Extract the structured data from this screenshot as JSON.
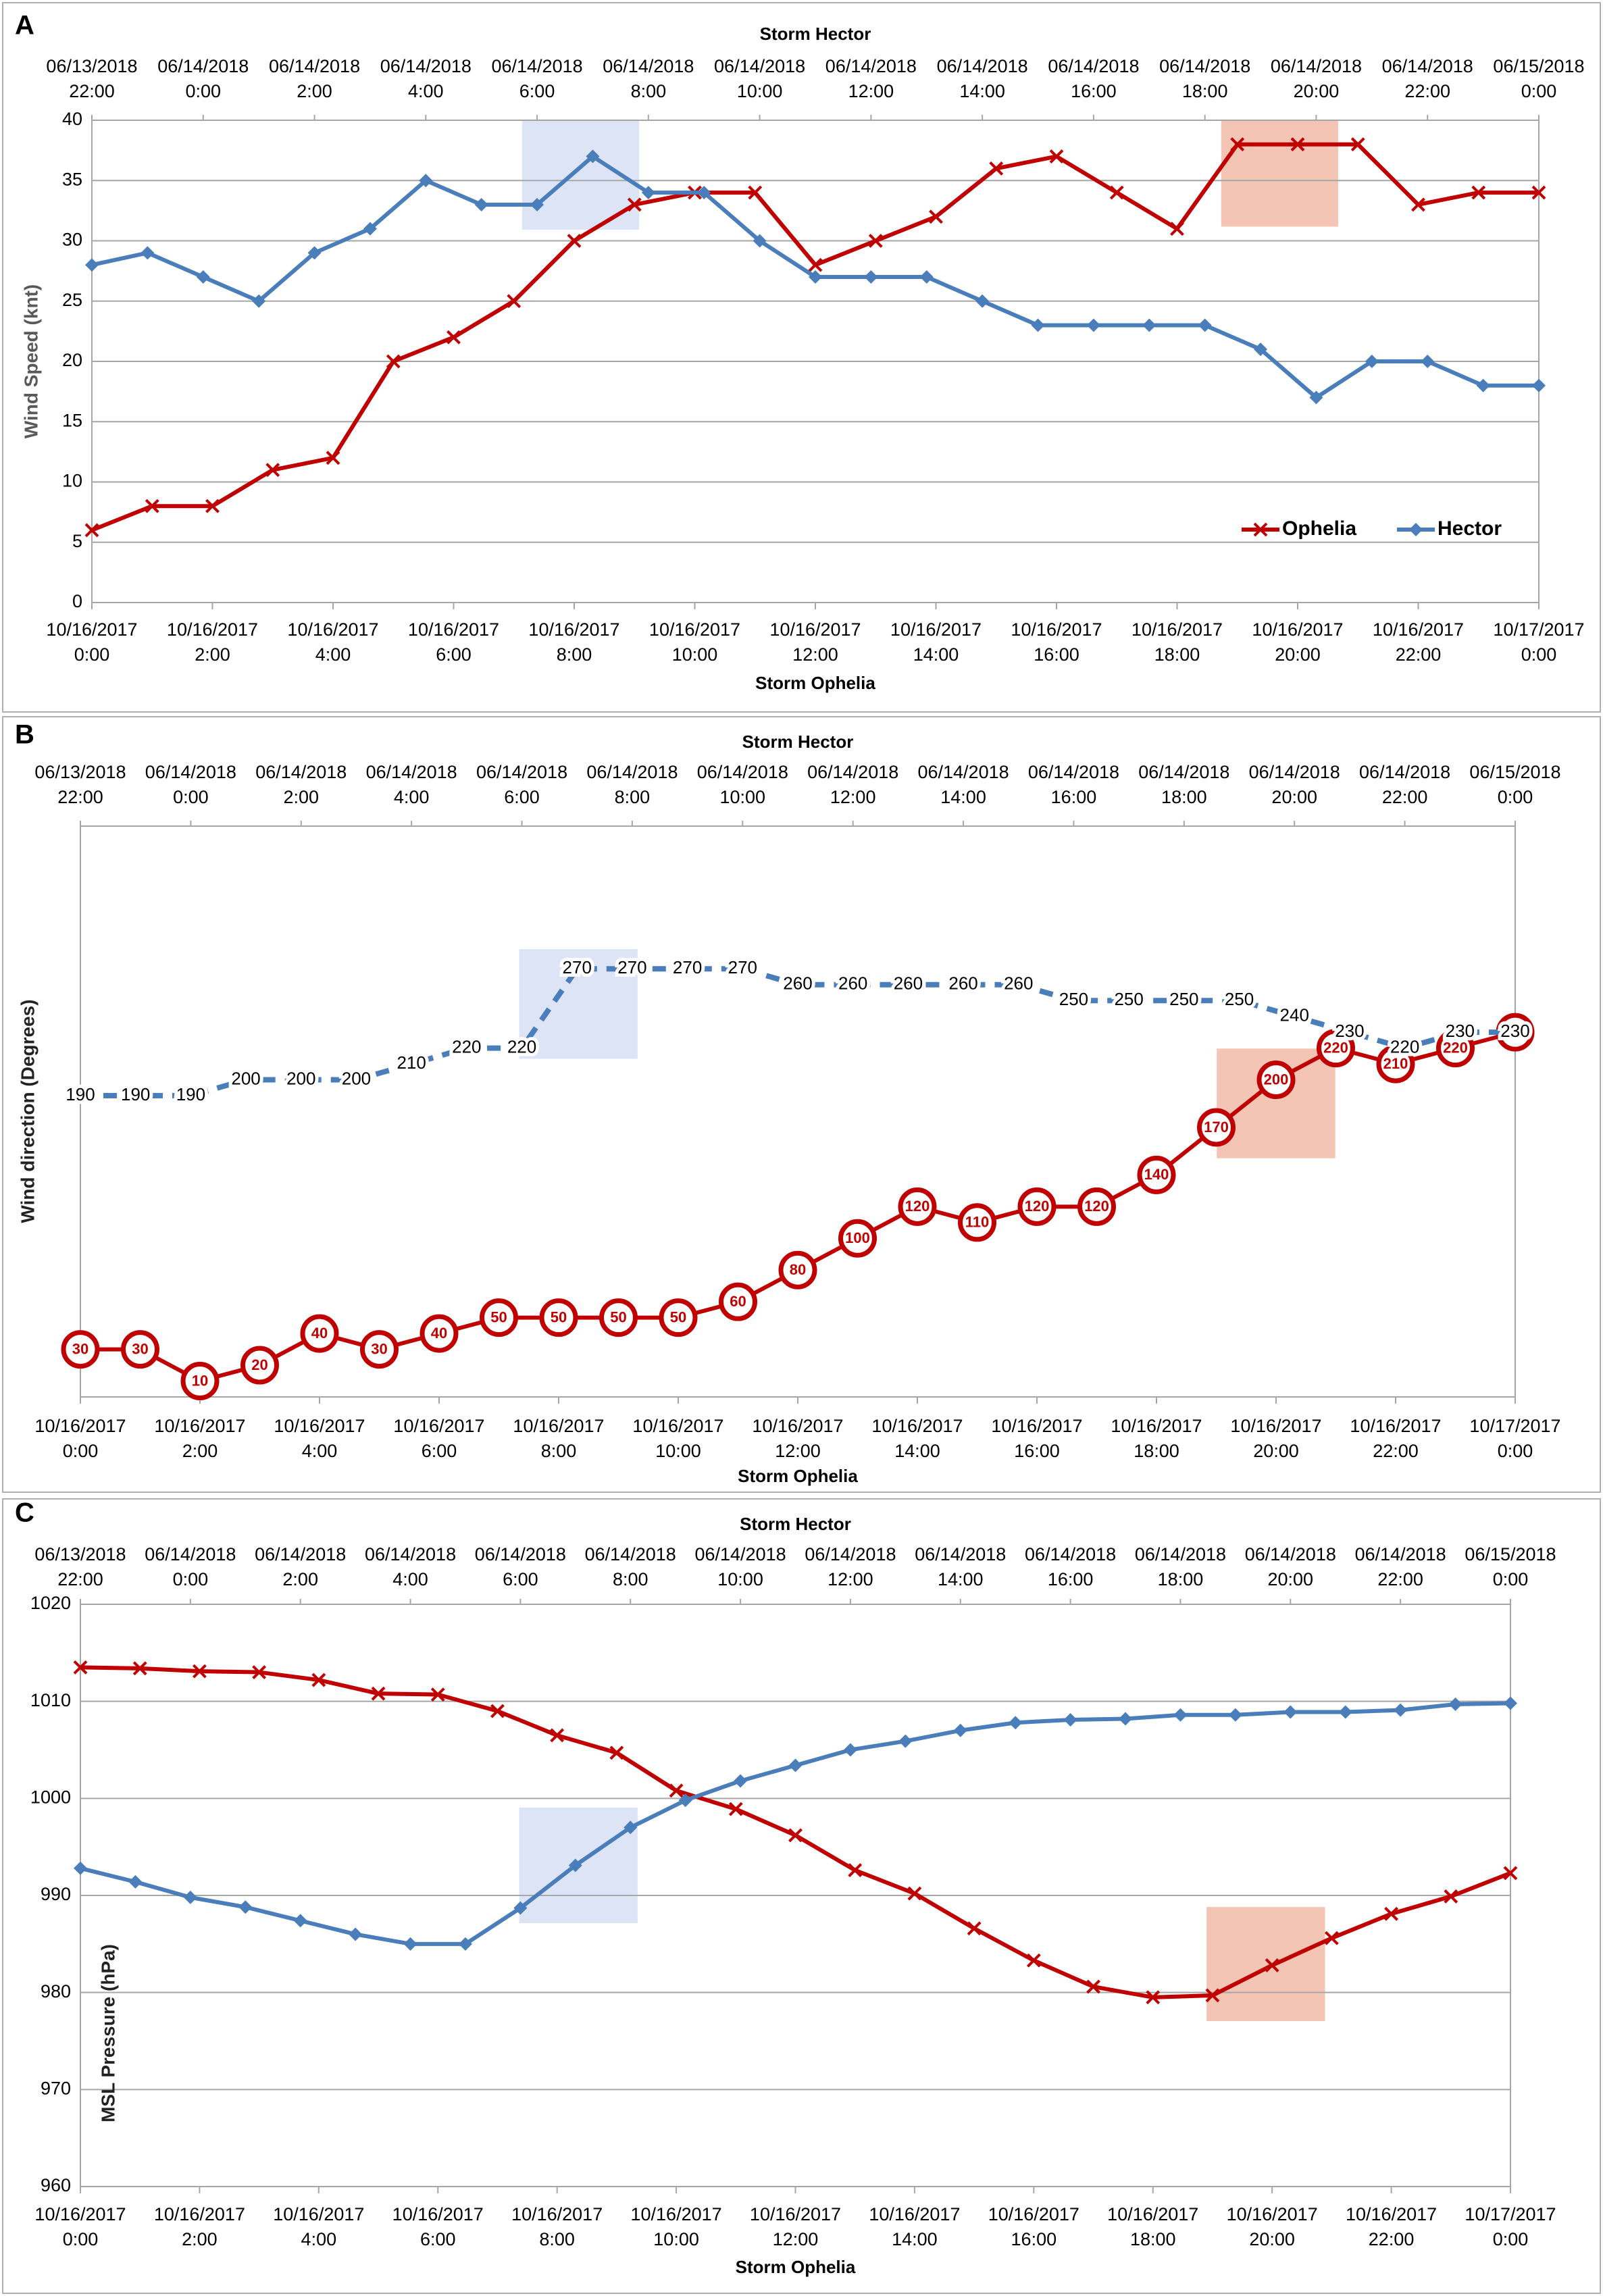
{
  "chart_data": [
    {
      "type": "line",
      "panel": "A",
      "title": "Storm Hector",
      "xlabel": "Storm Ophelia",
      "ylabel": "Wind Speed (knt)",
      "xlim": [
        0,
        24
      ],
      "xticks": [
        {
          "value": 0,
          "label": "10/16/2017 0:00"
        },
        {
          "value": 2,
          "label": "10/16/2017 2:00"
        },
        {
          "value": 4,
          "label": "10/16/2017 4:00"
        },
        {
          "value": 6,
          "label": "10/16/2017 6:00"
        },
        {
          "value": 8,
          "label": "10/16/2017 8:00"
        },
        {
          "value": 10,
          "label": "10/16/2017 10:00"
        },
        {
          "value": 12,
          "label": "10/16/2017 12:00"
        },
        {
          "value": 14,
          "label": "10/16/2017 14:00"
        },
        {
          "value": 16,
          "label": "10/16/2017 16:00"
        },
        {
          "value": 18,
          "label": "10/16/2017 18:00"
        },
        {
          "value": 20,
          "label": "10/16/2017 20:00"
        },
        {
          "value": 22,
          "label": "10/16/2017 22:00"
        },
        {
          "value": 24,
          "label": "10/17/2017 0:00"
        }
      ],
      "x2lim": [
        0,
        26
      ],
      "x2ticks": [
        {
          "value": 0,
          "label": "06/13/2018 22:00"
        },
        {
          "value": 2,
          "label": "06/14/2018 0:00"
        },
        {
          "value": 4,
          "label": "06/14/2018 2:00"
        },
        {
          "value": 6,
          "label": "06/14/2018 4:00"
        },
        {
          "value": 8,
          "label": "06/14/2018 6:00"
        },
        {
          "value": 10,
          "label": "06/14/2018 8:00"
        },
        {
          "value": 12,
          "label": "06/14/2018 10:00"
        },
        {
          "value": 14,
          "label": "06/14/2018 12:00"
        },
        {
          "value": 16,
          "label": "06/14/2018 14:00"
        },
        {
          "value": 18,
          "label": "06/14/2018 16:00"
        },
        {
          "value": 20,
          "label": "06/14/2018 18:00"
        },
        {
          "value": 22,
          "label": "06/14/2018 20:00"
        },
        {
          "value": 24,
          "label": "06/14/2018 22:00"
        },
        {
          "value": 26,
          "label": "06/15/2018 0:00"
        }
      ],
      "ylim": [
        0,
        40
      ],
      "yticks": [
        0,
        5,
        10,
        15,
        20,
        25,
        30,
        35,
        40
      ],
      "grid": true,
      "legend": "lower right",
      "series": [
        {
          "name": "Ophelia",
          "color": "#c00000",
          "marker": "x",
          "x": [
            0,
            1,
            2,
            3,
            4,
            5,
            6,
            7,
            8,
            9,
            10,
            11,
            12,
            13,
            14,
            15,
            16,
            17,
            18,
            19,
            20,
            21,
            22,
            23,
            24
          ],
          "values": [
            6,
            8,
            8,
            11,
            12,
            20,
            22,
            25,
            30,
            33,
            34,
            34,
            28,
            30,
            32,
            36,
            37,
            34,
            31,
            38,
            38,
            38,
            33,
            34,
            34
          ]
        },
        {
          "name": "Hector",
          "color": "#4a7ebb",
          "marker": "diamond",
          "xaxis": "x2",
          "x": [
            0,
            1,
            2,
            3,
            4,
            5,
            6,
            7,
            8,
            9,
            10,
            11,
            12,
            13,
            14,
            15,
            16,
            17,
            18,
            19,
            20,
            21,
            22,
            23,
            24,
            25,
            26
          ],
          "values": [
            28,
            29,
            27,
            25,
            29,
            31,
            35,
            33,
            33,
            37,
            34,
            34,
            30,
            27,
            27,
            27,
            25,
            23,
            23,
            23,
            23,
            21,
            17,
            20,
            20,
            18,
            18
          ]
        }
      ]
    },
    {
      "type": "line",
      "panel": "B",
      "title": "Storm Hector",
      "xlabel": "Storm Ophelia",
      "ylabel": "Wind direction (Degrees)",
      "xlim": [
        0,
        24
      ],
      "xticks": [
        {
          "value": 0,
          "label": "10/16/2017 0:00"
        },
        {
          "value": 2,
          "label": "10/16/2017 2:00"
        },
        {
          "value": 4,
          "label": "10/16/2017 4:00"
        },
        {
          "value": 6,
          "label": "10/16/2017 6:00"
        },
        {
          "value": 8,
          "label": "10/16/2017 8:00"
        },
        {
          "value": 10,
          "label": "10/16/2017 10:00"
        },
        {
          "value": 12,
          "label": "10/16/2017 12:00"
        },
        {
          "value": 14,
          "label": "10/16/2017 14:00"
        },
        {
          "value": 16,
          "label": "10/16/2017 16:00"
        },
        {
          "value": 18,
          "label": "10/16/2017 18:00"
        },
        {
          "value": 20,
          "label": "10/16/2017 20:00"
        },
        {
          "value": 22,
          "label": "10/16/2017 22:00"
        },
        {
          "value": 24,
          "label": "10/17/2017 0:00"
        }
      ],
      "x2lim": [
        0,
        26
      ],
      "x2ticks": [
        {
          "value": 0,
          "label": "06/13/2018 22:00"
        },
        {
          "value": 2,
          "label": "06/14/2018 0:00"
        },
        {
          "value": 4,
          "label": "06/14/2018 2:00"
        },
        {
          "value": 6,
          "label": "06/14/2018 4:00"
        },
        {
          "value": 8,
          "label": "06/14/2018 6:00"
        },
        {
          "value": 10,
          "label": "06/14/2018 8:00"
        },
        {
          "value": 12,
          "label": "06/14/2018 10:00"
        },
        {
          "value": 14,
          "label": "06/14/2018 12:00"
        },
        {
          "value": 16,
          "label": "06/14/2018 14:00"
        },
        {
          "value": 18,
          "label": "06/14/2018 16:00"
        },
        {
          "value": 20,
          "label": "06/14/2018 18:00"
        },
        {
          "value": 22,
          "label": "06/14/2018 20:00"
        },
        {
          "value": 24,
          "label": "06/14/2018 22:00"
        },
        {
          "value": 26,
          "label": "06/15/2018 0:00"
        }
      ],
      "ylim": [
        0,
        360
      ],
      "grid": false,
      "data_labels": true,
      "series": [
        {
          "name": "Ophelia",
          "color": "#c00000",
          "marker": "circle",
          "x": [
            0,
            1,
            2,
            3,
            4,
            5,
            6,
            7,
            8,
            9,
            10,
            11,
            12,
            13,
            14,
            15,
            16,
            17,
            18,
            19,
            20,
            21,
            22,
            23,
            24
          ],
          "values": [
            30,
            30,
            10,
            20,
            40,
            30,
            40,
            50,
            50,
            50,
            50,
            60,
            80,
            100,
            120,
            110,
            120,
            120,
            140,
            170,
            200,
            220,
            210,
            220,
            230
          ]
        },
        {
          "name": "Hector",
          "color": "#4a7ebb",
          "line_style": "dashed",
          "xaxis": "x2",
          "x": [
            0,
            1,
            2,
            3,
            4,
            5,
            6,
            7,
            8,
            9,
            10,
            11,
            12,
            13,
            14,
            15,
            16,
            17,
            18,
            19,
            20,
            21,
            22,
            23,
            24,
            25,
            26
          ],
          "values": [
            190,
            190,
            190,
            200,
            200,
            200,
            210,
            220,
            220,
            270,
            270,
            270,
            270,
            260,
            260,
            260,
            260,
            260,
            250,
            250,
            250,
            250,
            240,
            230,
            220,
            230,
            230
          ]
        }
      ]
    },
    {
      "type": "line",
      "panel": "C",
      "title": "Storm Hector",
      "xlabel": "Storm Ophelia",
      "ylabel": "MSL Pressure (hPa)",
      "xlim": [
        0,
        24
      ],
      "xticks": [
        {
          "value": 0,
          "label": "10/16/2017 0:00"
        },
        {
          "value": 2,
          "label": "10/16/2017 2:00"
        },
        {
          "value": 4,
          "label": "10/16/2017 4:00"
        },
        {
          "value": 6,
          "label": "10/16/2017 6:00"
        },
        {
          "value": 8,
          "label": "10/16/2017 8:00"
        },
        {
          "value": 10,
          "label": "10/16/2017 10:00"
        },
        {
          "value": 12,
          "label": "10/16/2017 12:00"
        },
        {
          "value": 14,
          "label": "10/16/2017 14:00"
        },
        {
          "value": 16,
          "label": "10/16/2017 16:00"
        },
        {
          "value": 18,
          "label": "10/16/2017 18:00"
        },
        {
          "value": 20,
          "label": "10/16/2017 20:00"
        },
        {
          "value": 22,
          "label": "10/16/2017 22:00"
        },
        {
          "value": 24,
          "label": "10/17/2017 0:00"
        }
      ],
      "x2lim": [
        0,
        26
      ],
      "x2ticks": [
        {
          "value": 0,
          "label": "06/13/2018 22:00"
        },
        {
          "value": 2,
          "label": "06/14/2018 0:00"
        },
        {
          "value": 4,
          "label": "06/14/2018 2:00"
        },
        {
          "value": 6,
          "label": "06/14/2018 4:00"
        },
        {
          "value": 8,
          "label": "06/14/2018 6:00"
        },
        {
          "value": 10,
          "label": "06/14/2018 8:00"
        },
        {
          "value": 12,
          "label": "06/14/2018 10:00"
        },
        {
          "value": 14,
          "label": "06/14/2018 12:00"
        },
        {
          "value": 16,
          "label": "06/14/2018 14:00"
        },
        {
          "value": 18,
          "label": "06/14/2018 16:00"
        },
        {
          "value": 20,
          "label": "06/14/2018 18:00"
        },
        {
          "value": 22,
          "label": "06/14/2018 20:00"
        },
        {
          "value": 24,
          "label": "06/14/2018 22:00"
        },
        {
          "value": 26,
          "label": "06/15/2018 0:00"
        }
      ],
      "ylim": [
        960,
        1020
      ],
      "yticks": [
        960,
        970,
        980,
        990,
        1000,
        1010,
        1020
      ],
      "grid": true,
      "series": [
        {
          "name": "Ophelia",
          "color": "#c00000",
          "marker": "x",
          "x": [
            0,
            1,
            2,
            3,
            4,
            5,
            6,
            7,
            8,
            9,
            10,
            11,
            12,
            13,
            14,
            15,
            16,
            17,
            18,
            19,
            20,
            21,
            22,
            23,
            24
          ],
          "values": [
            1013.5,
            1013.4,
            1013.1,
            1013.0,
            1012.2,
            1010.8,
            1010.7,
            1009.0,
            1006.5,
            1004.7,
            1000.8,
            998.9,
            996.2,
            992.6,
            990.2,
            986.6,
            983.3,
            980.6,
            979.5,
            979.7,
            982.8,
            985.6,
            988.1,
            989.9,
            992.3
          ]
        },
        {
          "name": "Hector",
          "color": "#4a7ebb",
          "marker": "diamond",
          "xaxis": "x2",
          "x": [
            0,
            1,
            2,
            3,
            4,
            5,
            6,
            7,
            8,
            9,
            10,
            11,
            12,
            13,
            14,
            15,
            16,
            17,
            18,
            19,
            20,
            21,
            22,
            23,
            24,
            25,
            26
          ],
          "values": [
            992.8,
            991.4,
            989.8,
            988.8,
            987.4,
            986.0,
            985.0,
            985.0,
            988.7,
            993.1,
            997.0,
            999.8,
            1001.8,
            1003.4,
            1005.0,
            1005.9,
            1007.0,
            1007.8,
            1008.1,
            1008.2,
            1008.6,
            1008.6,
            1008.9,
            1008.9,
            1009.1,
            1009.7,
            1009.8
          ]
        }
      ]
    }
  ]
}
